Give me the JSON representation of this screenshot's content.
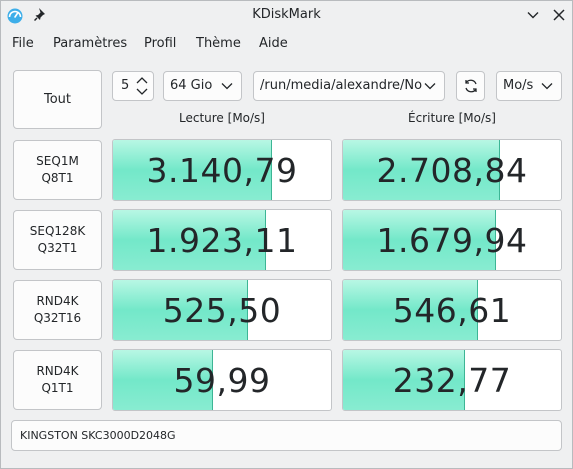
{
  "window": {
    "title": "KDiskMark"
  },
  "menu": [
    "File",
    "Paramètres",
    "Profil",
    "Thème",
    "Aide"
  ],
  "toolbar": {
    "all_button": "Tout",
    "runs": "5",
    "size": "64 Gio",
    "path": "/run/media/alexandre/Nouv",
    "unit": "Mo/s"
  },
  "headers": {
    "read": "Lecture [Mo/s]",
    "write": "Écriture [Mo/s]"
  },
  "tests": [
    {
      "line1": "SEQ1M",
      "line2": "Q8T1",
      "read": "3.140,79",
      "write": "2.708,84",
      "read_pct": 0.73,
      "write_pct": 0.72
    },
    {
      "line1": "SEQ128K",
      "line2": "Q32T1",
      "read": "1.923,11",
      "write": "1.679,94",
      "read_pct": 0.7,
      "write_pct": 0.7
    },
    {
      "line1": "RND4K",
      "line2": "Q32T16",
      "read": "525,50",
      "write": "546,61",
      "read_pct": 0.62,
      "write_pct": 0.62
    },
    {
      "line1": "RND4K",
      "line2": "Q1T1",
      "read": "59,99",
      "write": "232,77",
      "read_pct": 0.46,
      "write_pct": 0.56
    }
  ],
  "device": "KINGSTON SKC3000D2048G",
  "colors": {
    "bar": "#73e8c9",
    "bar_edge": "#3db595",
    "close": "#232629"
  }
}
